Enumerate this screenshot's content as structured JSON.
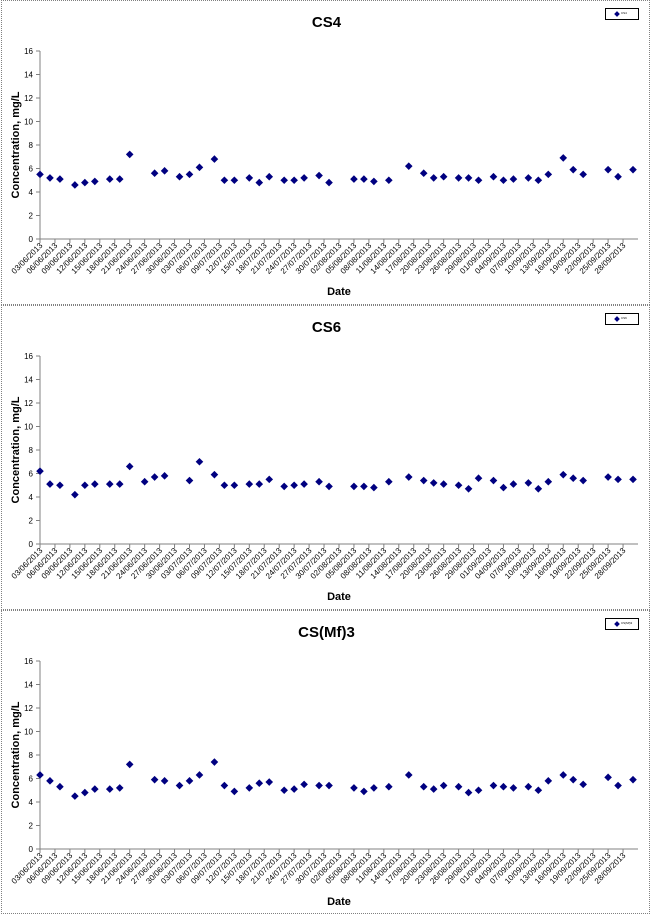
{
  "colors": {
    "marker": "#000080",
    "axis": "#808080",
    "frame": "#808080"
  },
  "chart_data": [
    {
      "type": "scatter",
      "title": "CS4",
      "xlabel": "Date",
      "ylabel": "Concentration, mg/L",
      "ylim": [
        0,
        16
      ],
      "yticks": [
        "0",
        "2",
        "4",
        "6",
        "8",
        "10",
        "12",
        "14",
        "16"
      ],
      "grid": false,
      "legend": {
        "placement": "top-right",
        "entries": [
          "CS4"
        ]
      },
      "x_tick_labels": [
        "03/06/2013",
        "06/06/2013",
        "09/06/2013",
        "12/06/2013",
        "15/06/2013",
        "18/06/2013",
        "21/06/2013",
        "24/06/2013",
        "27/06/2013",
        "30/06/2013",
        "03/07/2013",
        "06/07/2013",
        "09/07/2013",
        "12/07/2013",
        "15/07/2013",
        "18/07/2013",
        "21/07/2013",
        "24/07/2013",
        "27/07/2013",
        "30/07/2013",
        "02/08/2013",
        "05/08/2013",
        "08/08/2013",
        "11/08/2013",
        "14/08/2013",
        "17/08/2013",
        "20/08/2013",
        "23/08/2013",
        "26/08/2013",
        "29/08/2013",
        "01/09/2013",
        "04/09/2013",
        "07/09/2013",
        "10/09/2013",
        "13/09/2013",
        "16/09/2013",
        "19/09/2013",
        "22/09/2013",
        "25/09/2013",
        "28/09/2013"
      ],
      "series": [
        {
          "x": [
            "03/06/2013",
            "05/06/2013",
            "07/06/2013",
            "10/06/2013",
            "12/06/2013",
            "14/06/2013",
            "17/06/2013",
            "19/06/2013",
            "21/06/2013",
            "26/06/2013",
            "28/06/2013",
            "01/07/2013",
            "03/07/2013",
            "05/07/2013",
            "08/07/2013",
            "10/07/2013",
            "12/07/2013",
            "15/07/2013",
            "17/07/2013",
            "19/07/2013",
            "22/07/2013",
            "24/07/2013",
            "26/07/2013",
            "29/07/2013",
            "31/07/2013",
            "05/08/2013",
            "07/08/2013",
            "09/08/2013",
            "12/08/2013",
            "16/08/2013",
            "19/08/2013",
            "21/08/2013",
            "23/08/2013",
            "26/08/2013",
            "28/08/2013",
            "30/08/2013",
            "02/09/2013",
            "04/09/2013",
            "06/09/2013",
            "09/09/2013",
            "11/09/2013",
            "13/09/2013",
            "16/09/2013",
            "18/09/2013",
            "20/09/2013",
            "25/09/2013",
            "27/09/2013",
            "30/09/2013"
          ],
          "values": [
            5.5,
            5.2,
            5.1,
            4.6,
            4.8,
            4.9,
            5.1,
            5.1,
            7.2,
            5.6,
            5.8,
            5.3,
            5.5,
            6.1,
            6.8,
            5.0,
            5.0,
            5.2,
            4.8,
            5.3,
            5.0,
            5.0,
            5.2,
            5.4,
            4.8,
            5.1,
            5.1,
            4.9,
            5.0,
            6.2,
            5.6,
            5.2,
            5.3,
            5.2,
            5.2,
            5.0,
            5.3,
            5.0,
            5.1,
            5.2,
            5.0,
            5.5,
            6.9,
            5.9,
            5.5,
            5.9,
            5.3,
            5.9
          ]
        }
      ]
    },
    {
      "type": "scatter",
      "title": "CS6",
      "xlabel": "Date",
      "ylabel": "Concentration, mg/L",
      "ylim": [
        0,
        16
      ],
      "yticks": [
        "0",
        "2",
        "4",
        "6",
        "8",
        "10",
        "12",
        "14",
        "16"
      ],
      "grid": false,
      "legend": {
        "placement": "top-right",
        "entries": [
          "CS6"
        ]
      },
      "x_tick_labels": [
        "03/06/2013",
        "06/06/2013",
        "09/06/2013",
        "12/06/2013",
        "15/06/2013",
        "18/06/2013",
        "21/06/2013",
        "24/06/2013",
        "27/06/2013",
        "30/06/2013",
        "03/07/2013",
        "06/07/2013",
        "09/07/2013",
        "12/07/2013",
        "15/07/2013",
        "18/07/2013",
        "21/07/2013",
        "24/07/2013",
        "27/07/2013",
        "30/07/2013",
        "02/08/2013",
        "05/08/2013",
        "08/08/2013",
        "11/08/2013",
        "14/08/2013",
        "17/08/2013",
        "20/08/2013",
        "23/08/2013",
        "26/08/2013",
        "29/08/2013",
        "01/09/2013",
        "04/09/2013",
        "07/09/2013",
        "10/09/2013",
        "13/09/2013",
        "16/09/2013",
        "19/09/2013",
        "22/09/2013",
        "25/09/2013",
        "28/09/2013"
      ],
      "series": [
        {
          "x": [
            "03/06/2013",
            "05/06/2013",
            "07/06/2013",
            "10/06/2013",
            "12/06/2013",
            "14/06/2013",
            "17/06/2013",
            "19/06/2013",
            "21/06/2013",
            "24/06/2013",
            "26/06/2013",
            "28/06/2013",
            "03/07/2013",
            "05/07/2013",
            "08/07/2013",
            "10/07/2013",
            "12/07/2013",
            "15/07/2013",
            "17/07/2013",
            "19/07/2013",
            "22/07/2013",
            "24/07/2013",
            "26/07/2013",
            "29/07/2013",
            "31/07/2013",
            "05/08/2013",
            "07/08/2013",
            "09/08/2013",
            "12/08/2013",
            "16/08/2013",
            "19/08/2013",
            "21/08/2013",
            "23/08/2013",
            "26/08/2013",
            "28/08/2013",
            "30/08/2013",
            "02/09/2013",
            "04/09/2013",
            "06/09/2013",
            "09/09/2013",
            "11/09/2013",
            "13/09/2013",
            "16/09/2013",
            "18/09/2013",
            "20/09/2013",
            "25/09/2013",
            "27/09/2013",
            "30/09/2013"
          ],
          "values": [
            6.2,
            5.1,
            5.0,
            4.2,
            5.0,
            5.1,
            5.1,
            5.1,
            6.6,
            5.3,
            5.7,
            5.8,
            5.4,
            7.0,
            5.9,
            5.0,
            5.0,
            5.1,
            5.1,
            5.5,
            4.9,
            5.0,
            5.1,
            5.3,
            4.9,
            4.9,
            4.9,
            4.8,
            5.3,
            5.7,
            5.4,
            5.2,
            5.1,
            5.0,
            4.7,
            5.6,
            5.4,
            4.8,
            5.1,
            5.2,
            4.7,
            5.3,
            5.9,
            5.6,
            5.4,
            5.7,
            5.5,
            5.5
          ]
        }
      ]
    },
    {
      "type": "scatter",
      "title": "CS(Mf)3",
      "xlabel": "Date",
      "ylabel": "Concentration, mg/L",
      "ylim": [
        0,
        16
      ],
      "yticks": [
        "0",
        "2",
        "4",
        "6",
        "8",
        "10",
        "12",
        "14",
        "16"
      ],
      "grid": false,
      "legend": {
        "placement": "top-right",
        "entries": [
          "CS(Mf)3"
        ]
      },
      "x_tick_labels": [
        "03/06/2013",
        "06/06/2013",
        "09/06/2013",
        "12/06/2013",
        "15/06/2013",
        "18/06/2013",
        "21/06/2013",
        "24/06/2013",
        "27/06/2013",
        "30/06/2013",
        "03/07/2013",
        "06/07/2013",
        "09/07/2013",
        "12/07/2013",
        "15/07/2013",
        "18/07/2013",
        "21/07/2013",
        "24/07/2013",
        "27/07/2013",
        "30/07/2013",
        "02/08/2013",
        "05/08/2013",
        "08/08/2013",
        "11/08/2013",
        "14/08/2013",
        "17/08/2013",
        "20/08/2013",
        "23/08/2013",
        "26/08/2013",
        "29/08/2013",
        "01/09/2013",
        "04/09/2013",
        "07/09/2013",
        "10/09/2013",
        "13/09/2013",
        "16/09/2013",
        "19/09/2013",
        "22/09/2013",
        "25/09/2013",
        "28/09/2013"
      ],
      "series": [
        {
          "x": [
            "03/06/2013",
            "05/06/2013",
            "07/06/2013",
            "10/06/2013",
            "12/06/2013",
            "14/06/2013",
            "17/06/2013",
            "19/06/2013",
            "21/06/2013",
            "26/06/2013",
            "28/06/2013",
            "01/07/2013",
            "03/07/2013",
            "05/07/2013",
            "08/07/2013",
            "10/07/2013",
            "12/07/2013",
            "15/07/2013",
            "17/07/2013",
            "19/07/2013",
            "22/07/2013",
            "24/07/2013",
            "26/07/2013",
            "29/07/2013",
            "31/07/2013",
            "05/08/2013",
            "07/08/2013",
            "09/08/2013",
            "12/08/2013",
            "16/08/2013",
            "19/08/2013",
            "21/08/2013",
            "23/08/2013",
            "26/08/2013",
            "28/08/2013",
            "30/08/2013",
            "02/09/2013",
            "04/09/2013",
            "06/09/2013",
            "09/09/2013",
            "11/09/2013",
            "13/09/2013",
            "16/09/2013",
            "18/09/2013",
            "20/09/2013",
            "25/09/2013",
            "27/09/2013",
            "30/09/2013"
          ],
          "values": [
            6.3,
            5.8,
            5.3,
            4.5,
            4.8,
            5.1,
            5.1,
            5.2,
            7.2,
            5.9,
            5.8,
            5.4,
            5.8,
            6.3,
            7.4,
            5.4,
            4.9,
            5.2,
            5.6,
            5.7,
            5.0,
            5.1,
            5.5,
            5.4,
            5.4,
            5.2,
            4.9,
            5.2,
            5.3,
            6.3,
            5.3,
            5.1,
            5.4,
            5.3,
            4.8,
            5.0,
            5.4,
            5.3,
            5.2,
            5.3,
            5.0,
            5.8,
            6.3,
            5.9,
            5.5,
            6.1,
            5.4,
            5.9
          ]
        }
      ]
    }
  ]
}
